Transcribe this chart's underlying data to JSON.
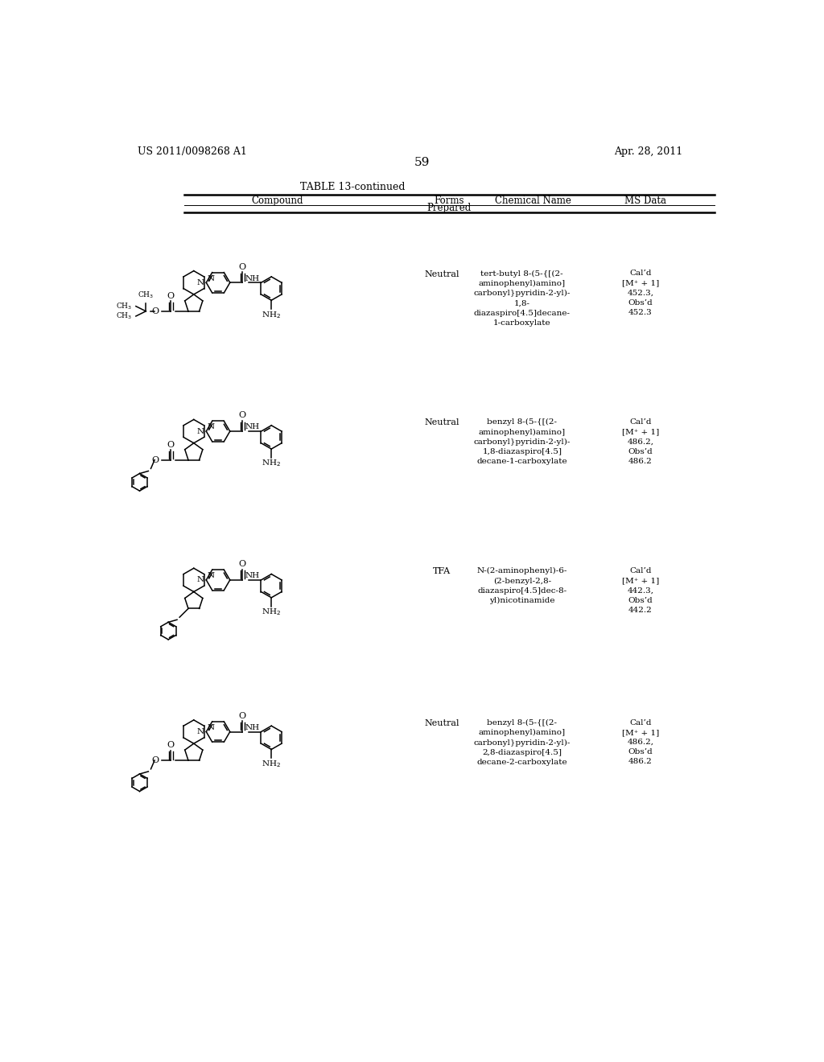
{
  "background_color": "#ffffff",
  "patent_number": "US 2011/0098268 A1",
  "patent_date": "Apr. 28, 2011",
  "page_number": "59",
  "table_title": "TABLE 13-continued",
  "rows": [
    {
      "forms": "Neutral",
      "chemical_name": "tert-butyl 8-(5-{[(2-\naminophenyl)amino]\ncarbonyl}pyridin-2-yl)-\n1,8-\ndiazaspiro[4.5]decane-\n1-carboxylate",
      "ms_data": "Cal’d\n[M⁺ + 1]\n452.3,\nObs’d\n452.3"
    },
    {
      "forms": "Neutral",
      "chemical_name": "benzyl 8-(5-{[(2-\naminophenyl)amino]\ncarbonyl}pyridin-2-yl)-\n1,8-diazaspiro[4.5]\ndecane-1-carboxylate",
      "ms_data": "Cal’d\n[M⁺ + 1]\n486.2,\nObs’d\n486.2"
    },
    {
      "forms": "TFA",
      "chemical_name": "N-(2-aminophenyl)-6-\n(2-benzyl-2,8-\ndiazaspiro[4.5]dec-8-\nyl)nicotinamide",
      "ms_data": "Cal’d\n[M⁺ + 1]\n442.3,\nObs’d\n442.2"
    },
    {
      "forms": "Neutral",
      "chemical_name": "benzyl 8-(5-{[(2-\naminophenyl)amino]\ncarbonyl}pyridin-2-yl)-\n2,8-diazaspiro[4.5]\ndecane-2-carboxylate",
      "ms_data": "Cal’d\n[M⁺ + 1]\n486.2,\nObs’d\n486.2"
    }
  ]
}
